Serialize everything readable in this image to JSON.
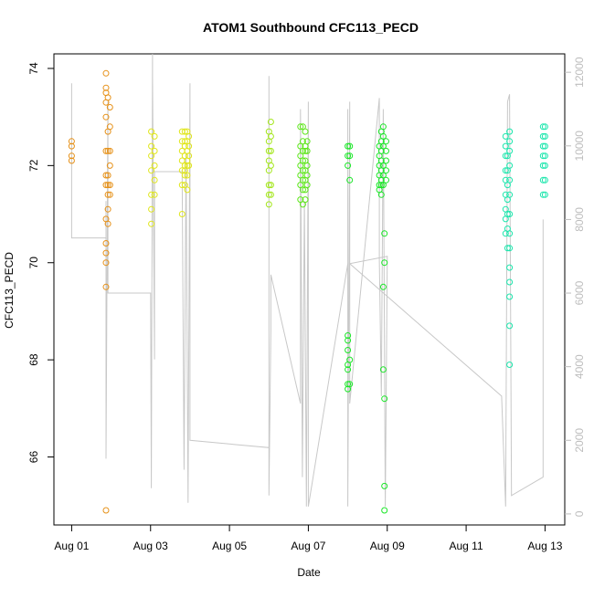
{
  "chart_data": {
    "type": "scatter",
    "title": "ATOM1 Southbound CFC113_PECD",
    "xlabel": "Date",
    "ylabel": "CFC113_PECD",
    "x_ticks": [
      "Aug 01",
      "Aug 03",
      "Aug 05",
      "Aug 07",
      "Aug 09",
      "Aug 11",
      "Aug 13"
    ],
    "x_tick_values": [
      0,
      2,
      4,
      6,
      8,
      10,
      12
    ],
    "xlim": [
      -0.45,
      12.5
    ],
    "ylim": [
      64.6,
      74.3
    ],
    "y_ticks": [
      66,
      68,
      70,
      72,
      74
    ],
    "y2_ticks": [
      0,
      2000,
      4000,
      6000,
      8000,
      10000,
      12000
    ],
    "y2lim": [
      -300,
      12500
    ],
    "secondary_axis_color": "#bdbdbd",
    "line_color": "#c8c8c8",
    "series": [
      {
        "color": "#e69119",
        "points": [
          [
            0.0,
            72.5
          ],
          [
            0.0,
            72.4
          ],
          [
            0.0,
            72.2
          ],
          [
            0.0,
            72.1
          ],
          [
            0.87,
            73.9
          ],
          [
            0.87,
            73.6
          ],
          [
            0.87,
            73.5
          ],
          [
            0.87,
            73.3
          ],
          [
            0.87,
            73.0
          ],
          [
            0.87,
            72.3
          ],
          [
            0.87,
            71.8
          ],
          [
            0.87,
            71.6
          ],
          [
            0.87,
            70.9
          ],
          [
            0.87,
            70.4
          ],
          [
            0.87,
            70.2
          ],
          [
            0.87,
            70.0
          ],
          [
            0.87,
            69.5
          ],
          [
            0.87,
            64.9
          ],
          [
            0.92,
            73.4
          ],
          [
            0.92,
            72.7
          ],
          [
            0.92,
            72.3
          ],
          [
            0.92,
            71.8
          ],
          [
            0.92,
            71.6
          ],
          [
            0.92,
            71.4
          ],
          [
            0.92,
            71.1
          ],
          [
            0.92,
            70.8
          ],
          [
            0.97,
            73.2
          ],
          [
            0.97,
            72.8
          ],
          [
            0.97,
            72.3
          ],
          [
            0.97,
            72.0
          ],
          [
            0.97,
            71.6
          ],
          [
            0.97,
            71.4
          ]
        ]
      },
      {
        "color": "#e0e61a",
        "points": [
          [
            2.02,
            72.7
          ],
          [
            2.02,
            72.4
          ],
          [
            2.02,
            72.2
          ],
          [
            2.02,
            71.9
          ],
          [
            2.02,
            71.4
          ],
          [
            2.02,
            71.1
          ],
          [
            2.02,
            70.8
          ],
          [
            2.1,
            72.6
          ],
          [
            2.1,
            72.3
          ],
          [
            2.1,
            72.0
          ],
          [
            2.1,
            71.7
          ],
          [
            2.1,
            71.4
          ],
          [
            2.8,
            72.7
          ],
          [
            2.8,
            72.5
          ],
          [
            2.8,
            72.3
          ],
          [
            2.8,
            72.1
          ],
          [
            2.8,
            71.9
          ],
          [
            2.8,
            71.6
          ],
          [
            2.8,
            71.0
          ],
          [
            2.87,
            72.7
          ],
          [
            2.87,
            72.5
          ],
          [
            2.87,
            72.4
          ],
          [
            2.87,
            72.2
          ],
          [
            2.87,
            72.0
          ],
          [
            2.87,
            71.9
          ],
          [
            2.87,
            71.8
          ],
          [
            2.87,
            71.6
          ],
          [
            2.93,
            72.7
          ],
          [
            2.93,
            72.5
          ],
          [
            2.93,
            72.3
          ],
          [
            2.93,
            72.1
          ],
          [
            2.93,
            72.0
          ],
          [
            2.93,
            71.8
          ],
          [
            2.93,
            71.5
          ],
          [
            2.97,
            72.6
          ],
          [
            2.97,
            72.4
          ],
          [
            2.97,
            72.2
          ],
          [
            2.97,
            72.0
          ]
        ]
      },
      {
        "color": "#a3e61a",
        "points": [
          [
            5.0,
            72.7
          ],
          [
            5.0,
            72.5
          ],
          [
            5.0,
            72.3
          ],
          [
            5.0,
            72.1
          ],
          [
            5.0,
            71.9
          ],
          [
            5.0,
            71.6
          ],
          [
            5.0,
            71.4
          ],
          [
            5.0,
            71.2
          ],
          [
            5.05,
            72.9
          ],
          [
            5.05,
            72.6
          ],
          [
            5.05,
            72.3
          ],
          [
            5.05,
            72.0
          ],
          [
            5.05,
            71.6
          ],
          [
            5.05,
            71.4
          ]
        ]
      },
      {
        "color": "#5ce619",
        "points": [
          [
            5.8,
            72.8
          ],
          [
            5.8,
            72.4
          ],
          [
            5.8,
            72.2
          ],
          [
            5.8,
            72.0
          ],
          [
            5.8,
            71.8
          ],
          [
            5.8,
            71.6
          ],
          [
            5.8,
            71.3
          ],
          [
            5.86,
            72.8
          ],
          [
            5.86,
            72.5
          ],
          [
            5.86,
            72.3
          ],
          [
            5.86,
            72.1
          ],
          [
            5.86,
            71.9
          ],
          [
            5.86,
            71.7
          ],
          [
            5.86,
            71.5
          ],
          [
            5.86,
            71.2
          ],
          [
            5.92,
            72.7
          ],
          [
            5.92,
            72.4
          ],
          [
            5.92,
            72.3
          ],
          [
            5.92,
            72.1
          ],
          [
            5.92,
            71.9
          ],
          [
            5.92,
            71.7
          ],
          [
            5.92,
            71.5
          ],
          [
            5.92,
            71.3
          ],
          [
            5.97,
            72.5
          ],
          [
            5.97,
            72.3
          ],
          [
            5.97,
            72.0
          ],
          [
            5.97,
            71.8
          ],
          [
            5.97,
            71.6
          ]
        ]
      },
      {
        "color": "#1ae627",
        "points": [
          [
            7.0,
            72.4
          ],
          [
            7.0,
            72.2
          ],
          [
            7.0,
            72.0
          ],
          [
            7.0,
            68.5
          ],
          [
            7.0,
            68.4
          ],
          [
            7.0,
            68.2
          ],
          [
            7.0,
            67.9
          ],
          [
            7.0,
            67.8
          ],
          [
            7.0,
            67.5
          ],
          [
            7.0,
            67.4
          ],
          [
            7.05,
            72.4
          ],
          [
            7.05,
            72.2
          ],
          [
            7.05,
            71.7
          ],
          [
            7.05,
            68.0
          ],
          [
            7.05,
            67.5
          ],
          [
            7.8,
            72.4
          ],
          [
            7.8,
            72.2
          ],
          [
            7.8,
            72.0
          ],
          [
            7.8,
            71.8
          ],
          [
            7.8,
            71.6
          ],
          [
            7.8,
            71.5
          ],
          [
            7.85,
            72.7
          ],
          [
            7.85,
            72.5
          ],
          [
            7.85,
            72.3
          ],
          [
            7.85,
            72.1
          ],
          [
            7.85,
            71.9
          ],
          [
            7.85,
            71.7
          ],
          [
            7.85,
            71.6
          ],
          [
            7.85,
            71.4
          ],
          [
            7.9,
            72.8
          ],
          [
            7.9,
            72.6
          ],
          [
            7.9,
            72.4
          ],
          [
            7.9,
            72.0
          ],
          [
            7.9,
            71.8
          ],
          [
            7.9,
            71.6
          ],
          [
            7.9,
            69.5
          ],
          [
            7.9,
            67.8
          ],
          [
            7.93,
            70.6
          ],
          [
            7.93,
            70.0
          ],
          [
            7.93,
            67.2
          ],
          [
            7.93,
            65.4
          ],
          [
            7.93,
            64.9
          ],
          [
            7.97,
            72.5
          ],
          [
            7.97,
            72.3
          ],
          [
            7.97,
            72.1
          ],
          [
            7.97,
            71.9
          ],
          [
            7.97,
            71.7
          ]
        ]
      },
      {
        "color": "#1ae6ac",
        "points": [
          [
            11.0,
            72.6
          ],
          [
            11.0,
            72.4
          ],
          [
            11.0,
            72.2
          ],
          [
            11.0,
            71.9
          ],
          [
            11.0,
            71.7
          ],
          [
            11.0,
            71.4
          ],
          [
            11.0,
            71.1
          ],
          [
            11.0,
            70.9
          ],
          [
            11.0,
            70.6
          ],
          [
            11.05,
            72.2
          ],
          [
            11.05,
            71.9
          ],
          [
            11.05,
            71.6
          ],
          [
            11.05,
            71.3
          ],
          [
            11.05,
            71.0
          ],
          [
            11.05,
            70.7
          ],
          [
            11.05,
            70.3
          ],
          [
            11.1,
            72.7
          ],
          [
            11.1,
            72.5
          ],
          [
            11.1,
            72.3
          ],
          [
            11.1,
            72.0
          ],
          [
            11.1,
            71.7
          ],
          [
            11.1,
            71.4
          ],
          [
            11.1,
            71.0
          ],
          [
            11.1,
            70.6
          ],
          [
            11.1,
            70.3
          ],
          [
            11.1,
            69.9
          ],
          [
            11.1,
            69.6
          ],
          [
            11.1,
            69.3
          ],
          [
            11.1,
            68.7
          ],
          [
            11.1,
            67.9
          ],
          [
            11.95,
            72.8
          ],
          [
            11.95,
            72.6
          ],
          [
            11.95,
            72.4
          ],
          [
            11.95,
            72.2
          ],
          [
            11.95,
            72.0
          ],
          [
            11.95,
            71.7
          ],
          [
            11.95,
            71.4
          ],
          [
            12.0,
            72.8
          ],
          [
            12.0,
            72.6
          ],
          [
            12.0,
            72.4
          ],
          [
            12.0,
            72.2
          ],
          [
            12.0,
            72.0
          ],
          [
            12.0,
            71.7
          ],
          [
            12.0,
            71.4
          ]
        ]
      }
    ],
    "secondary_line": {
      "color": "#c8c8c8",
      "points": [
        [
          0.0,
          11700
        ],
        [
          0.0,
          7500
        ],
        [
          0.87,
          7500
        ],
        [
          0.87,
          8500
        ],
        [
          0.87,
          1500
        ],
        [
          0.92,
          11200
        ],
        [
          0.92,
          6000
        ],
        [
          2.0,
          6000
        ],
        [
          2.02,
          700
        ],
        [
          2.05,
          12500
        ],
        [
          2.05,
          11900
        ],
        [
          2.1,
          4200
        ],
        [
          2.1,
          9300
        ],
        [
          2.8,
          9300
        ],
        [
          2.85,
          1200
        ],
        [
          2.9,
          9800
        ],
        [
          2.95,
          300
        ],
        [
          3.0,
          11700
        ],
        [
          3.0,
          2000
        ],
        [
          5.0,
          1800
        ],
        [
          5.0,
          11900
        ],
        [
          5.0,
          500
        ],
        [
          5.05,
          5000
        ],
        [
          5.05,
          6500
        ],
        [
          5.8,
          3000
        ],
        [
          5.8,
          11000
        ],
        [
          5.85,
          1000
        ],
        [
          5.9,
          8500
        ],
        [
          5.95,
          200
        ],
        [
          6.0,
          11200
        ],
        [
          6.0,
          200
        ],
        [
          7.0,
          6800
        ],
        [
          7.0,
          11000
        ],
        [
          7.0,
          200
        ],
        [
          7.05,
          11200
        ],
        [
          7.05,
          3000
        ],
        [
          7.8,
          11300
        ],
        [
          7.8,
          6900
        ],
        [
          7.85,
          3200
        ],
        [
          7.9,
          11000
        ],
        [
          7.95,
          200
        ],
        [
          8.0,
          7000
        ],
        [
          7.05,
          6800
        ],
        [
          10.9,
          3200
        ],
        [
          11.0,
          200
        ],
        [
          11.05,
          11200
        ],
        [
          11.1,
          11400
        ],
        [
          11.15,
          500
        ],
        [
          11.95,
          1000
        ],
        [
          11.95,
          8000
        ]
      ]
    }
  }
}
